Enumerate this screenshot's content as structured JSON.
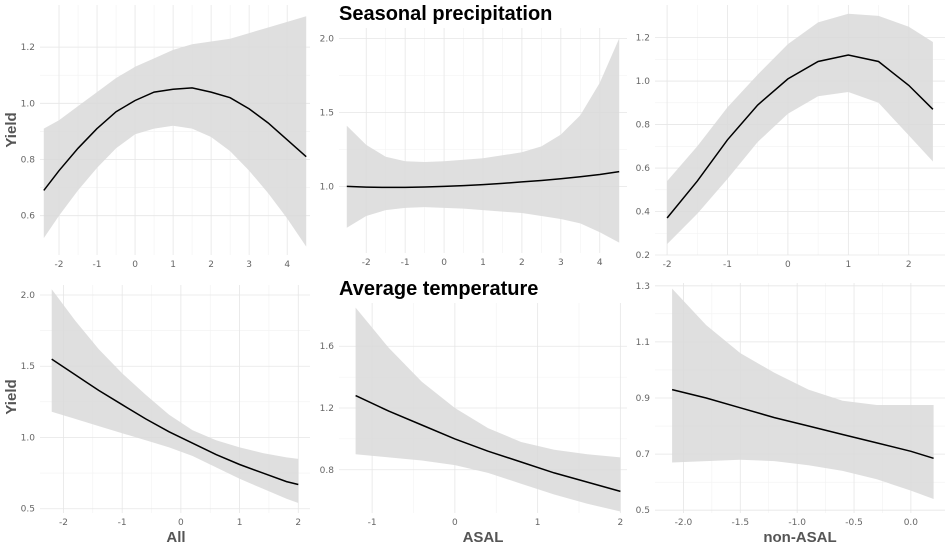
{
  "row_titles": [
    "Seasonal precipitation",
    "Average temperature"
  ],
  "column_labels": [
    "All",
    "ASAL",
    "non-ASAL"
  ],
  "y_axis_label": "Yield",
  "colors": {
    "ribbon": "#d9d9d9",
    "line": "#000000",
    "grid": "#e6e6e6"
  },
  "chart_data": [
    {
      "type": "line",
      "row": "Seasonal precipitation",
      "column": "All",
      "ylabel": "Yield",
      "xlim": [
        -2.5,
        4.6
      ],
      "ylim": [
        0.46,
        1.35
      ],
      "xticks": [
        -2,
        -1,
        0,
        1,
        2,
        3,
        4
      ],
      "xtick_labels": [
        "-2",
        "-1",
        "0",
        "1",
        "2",
        "3",
        "4"
      ],
      "yticks": [
        0.6,
        0.8,
        1.0,
        1.2
      ],
      "ytick_labels": [
        "0.6",
        "0.8",
        "1.0",
        "1.2"
      ],
      "x": [
        -2.4,
        -2.0,
        -1.5,
        -1.0,
        -0.5,
        0.0,
        0.5,
        1.0,
        1.5,
        2.0,
        2.5,
        3.0,
        3.5,
        4.0,
        4.5
      ],
      "fit": [
        0.69,
        0.76,
        0.84,
        0.91,
        0.97,
        1.01,
        1.04,
        1.05,
        1.055,
        1.04,
        1.02,
        0.98,
        0.93,
        0.87,
        0.81
      ],
      "lower": [
        0.52,
        0.6,
        0.69,
        0.77,
        0.84,
        0.89,
        0.91,
        0.92,
        0.91,
        0.88,
        0.83,
        0.76,
        0.68,
        0.59,
        0.49
      ],
      "upper": [
        0.91,
        0.94,
        0.99,
        1.04,
        1.09,
        1.13,
        1.16,
        1.19,
        1.21,
        1.22,
        1.23,
        1.25,
        1.27,
        1.29,
        1.31
      ]
    },
    {
      "type": "line",
      "row": "Seasonal precipitation",
      "column": "ASAL",
      "ylabel": "",
      "xlim": [
        -2.7,
        4.7
      ],
      "ylim": [
        0.55,
        2.07
      ],
      "xticks": [
        -2,
        -1,
        0,
        1,
        2,
        3,
        4
      ],
      "xtick_labels": [
        "-2",
        "-1",
        "0",
        "1",
        "2",
        "3",
        "4"
      ],
      "yticks": [
        1.0,
        1.5,
        2.0
      ],
      "ytick_labels": [
        "1.0",
        "1.5",
        "2.0"
      ],
      "x": [
        -2.5,
        -2.0,
        -1.5,
        -1.0,
        -0.5,
        0.0,
        0.5,
        1.0,
        1.5,
        2.0,
        2.5,
        3.0,
        3.5,
        4.0,
        4.5
      ],
      "fit": [
        1.0,
        0.995,
        0.993,
        0.993,
        0.996,
        1.0,
        1.005,
        1.012,
        1.02,
        1.03,
        1.04,
        1.052,
        1.065,
        1.08,
        1.1
      ],
      "lower": [
        0.72,
        0.8,
        0.84,
        0.855,
        0.86,
        0.855,
        0.85,
        0.84,
        0.83,
        0.82,
        0.8,
        0.78,
        0.75,
        0.69,
        0.62
      ],
      "upper": [
        1.41,
        1.28,
        1.2,
        1.17,
        1.165,
        1.17,
        1.18,
        1.19,
        1.21,
        1.23,
        1.27,
        1.35,
        1.48,
        1.7,
        2.0
      ]
    },
    {
      "type": "line",
      "row": "Seasonal precipitation",
      "column": "non-ASAL",
      "ylabel": "",
      "xlim": [
        -2.2,
        2.6
      ],
      "ylim": [
        0.2,
        1.35
      ],
      "xticks": [
        -2,
        -1,
        0,
        1,
        2
      ],
      "xtick_labels": [
        "-2",
        "-1",
        "0",
        "1",
        "2"
      ],
      "yticks": [
        0.2,
        0.4,
        0.6,
        0.8,
        1.0,
        1.2
      ],
      "ytick_labels": [
        "0.2",
        "0.4",
        "0.6",
        "0.8",
        "1.0",
        "1.2"
      ],
      "x": [
        -2.0,
        -1.5,
        -1.0,
        -0.5,
        0.0,
        0.5,
        1.0,
        1.5,
        2.0,
        2.4
      ],
      "fit": [
        0.37,
        0.54,
        0.73,
        0.89,
        1.01,
        1.09,
        1.12,
        1.09,
        0.98,
        0.87
      ],
      "lower": [
        0.25,
        0.39,
        0.55,
        0.72,
        0.85,
        0.93,
        0.95,
        0.9,
        0.75,
        0.63
      ],
      "upper": [
        0.54,
        0.7,
        0.88,
        1.03,
        1.17,
        1.27,
        1.31,
        1.3,
        1.25,
        1.18
      ]
    },
    {
      "type": "line",
      "row": "Average temperature",
      "column": "All",
      "ylabel": "Yield",
      "xlim": [
        -2.4,
        2.2
      ],
      "ylim": [
        0.47,
        2.07
      ],
      "xticks": [
        -2,
        -1,
        0,
        1,
        2
      ],
      "xtick_labels": [
        "-2",
        "-1",
        "0",
        "1",
        "2"
      ],
      "yticks": [
        0.5,
        1.0,
        1.5,
        2.0
      ],
      "ytick_labels": [
        "0.5",
        "1.0",
        "1.5",
        "2.0"
      ],
      "x": [
        -2.2,
        -1.8,
        -1.4,
        -1.0,
        -0.6,
        -0.2,
        0.2,
        0.6,
        1.0,
        1.4,
        1.8,
        2.0
      ],
      "fit": [
        1.55,
        1.44,
        1.33,
        1.23,
        1.13,
        1.04,
        0.96,
        0.88,
        0.81,
        0.75,
        0.69,
        0.67
      ],
      "lower": [
        1.18,
        1.13,
        1.08,
        1.03,
        0.98,
        0.93,
        0.87,
        0.79,
        0.71,
        0.64,
        0.57,
        0.54
      ],
      "upper": [
        2.04,
        1.82,
        1.62,
        1.45,
        1.3,
        1.16,
        1.05,
        0.98,
        0.93,
        0.89,
        0.86,
        0.85
      ]
    },
    {
      "type": "line",
      "row": "Average temperature",
      "column": "ASAL",
      "ylabel": "",
      "xlim": [
        -1.4,
        2.08
      ],
      "ylim": [
        0.52,
        1.88
      ],
      "xticks": [
        -1,
        0,
        1,
        2
      ],
      "xtick_labels": [
        "-1",
        "0",
        "1",
        "2"
      ],
      "yticks": [
        0.8,
        1.2,
        1.6
      ],
      "ytick_labels": [
        "0.8",
        "1.2",
        "1.6"
      ],
      "x": [
        -1.2,
        -0.8,
        -0.4,
        0.0,
        0.4,
        0.8,
        1.2,
        1.6,
        2.0
      ],
      "fit": [
        1.28,
        1.18,
        1.09,
        1.0,
        0.92,
        0.85,
        0.78,
        0.72,
        0.66
      ],
      "lower": [
        0.9,
        0.88,
        0.86,
        0.83,
        0.78,
        0.71,
        0.64,
        0.58,
        0.53
      ],
      "upper": [
        1.85,
        1.59,
        1.37,
        1.2,
        1.07,
        0.98,
        0.93,
        0.9,
        0.88
      ]
    },
    {
      "type": "line",
      "row": "Average temperature",
      "column": "non-ASAL",
      "ylabel": "",
      "xlim": [
        -2.25,
        0.3
      ],
      "ylim": [
        0.49,
        1.31
      ],
      "xticks": [
        -2.0,
        -1.5,
        -1.0,
        -0.5,
        0.0
      ],
      "xtick_labels": [
        "-2.0",
        "-1.5",
        "-1.0",
        "-0.5",
        "0.0"
      ],
      "yticks": [
        0.5,
        0.7,
        0.9,
        1.1,
        1.3
      ],
      "ytick_labels": [
        "0.5",
        "0.7",
        "0.9",
        "1.1",
        "1.3"
      ],
      "x": [
        -2.1,
        -1.8,
        -1.5,
        -1.2,
        -0.9,
        -0.6,
        -0.3,
        0.0,
        0.2
      ],
      "fit": [
        0.93,
        0.9,
        0.865,
        0.83,
        0.8,
        0.77,
        0.74,
        0.71,
        0.685
      ],
      "lower": [
        0.67,
        0.675,
        0.68,
        0.675,
        0.66,
        0.64,
        0.61,
        0.57,
        0.54
      ],
      "upper": [
        1.29,
        1.16,
        1.06,
        0.99,
        0.93,
        0.89,
        0.875,
        0.875,
        0.875
      ]
    }
  ]
}
